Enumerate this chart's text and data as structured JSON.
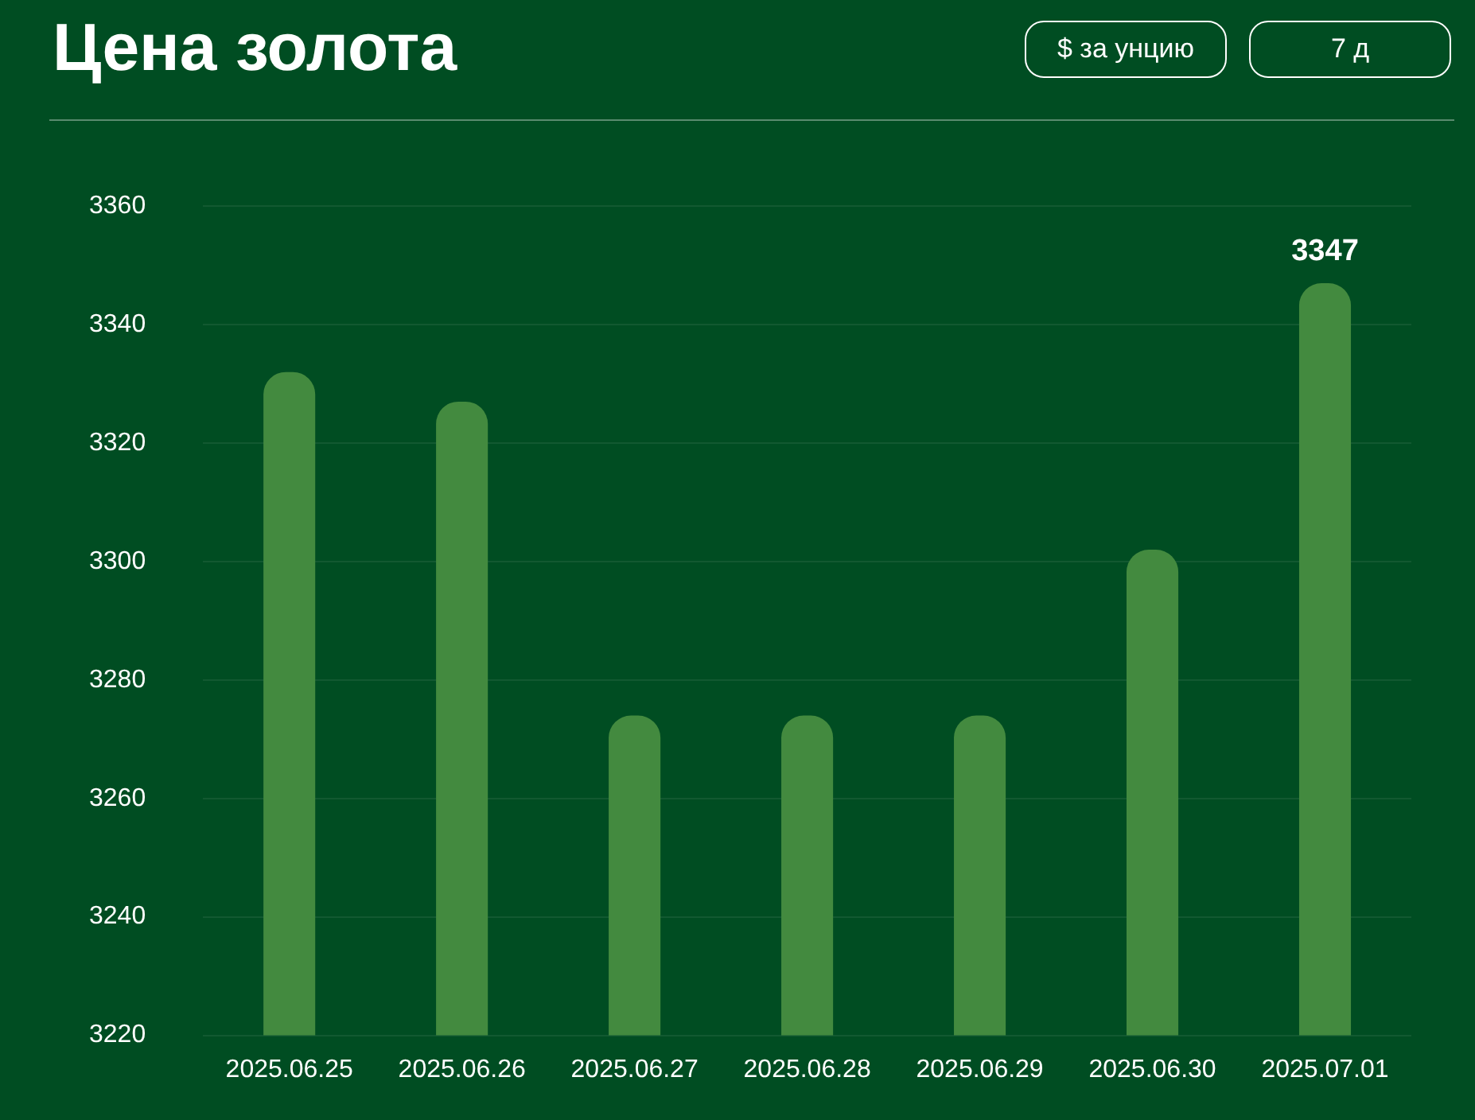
{
  "chart_data": {
    "type": "bar",
    "title": "Цена золота",
    "annotations": [
      "$ за унцию",
      "7 д"
    ],
    "categories": [
      "2025.06.25",
      "2025.06.26",
      "2025.06.27",
      "2025.06.28",
      "2025.06.29",
      "2025.06.30",
      "2025.07.01"
    ],
    "values": [
      3332,
      3327,
      3274,
      3274,
      3274,
      3302,
      3347
    ],
    "value_labels": [
      null,
      null,
      null,
      null,
      null,
      null,
      "3347"
    ],
    "color": "#438a3f",
    "ylim": [
      3220,
      3360
    ],
    "yticks": [
      3220,
      3240,
      3260,
      3280,
      3300,
      3320,
      3340,
      3360
    ],
    "grid": "y",
    "legend": false
  }
}
